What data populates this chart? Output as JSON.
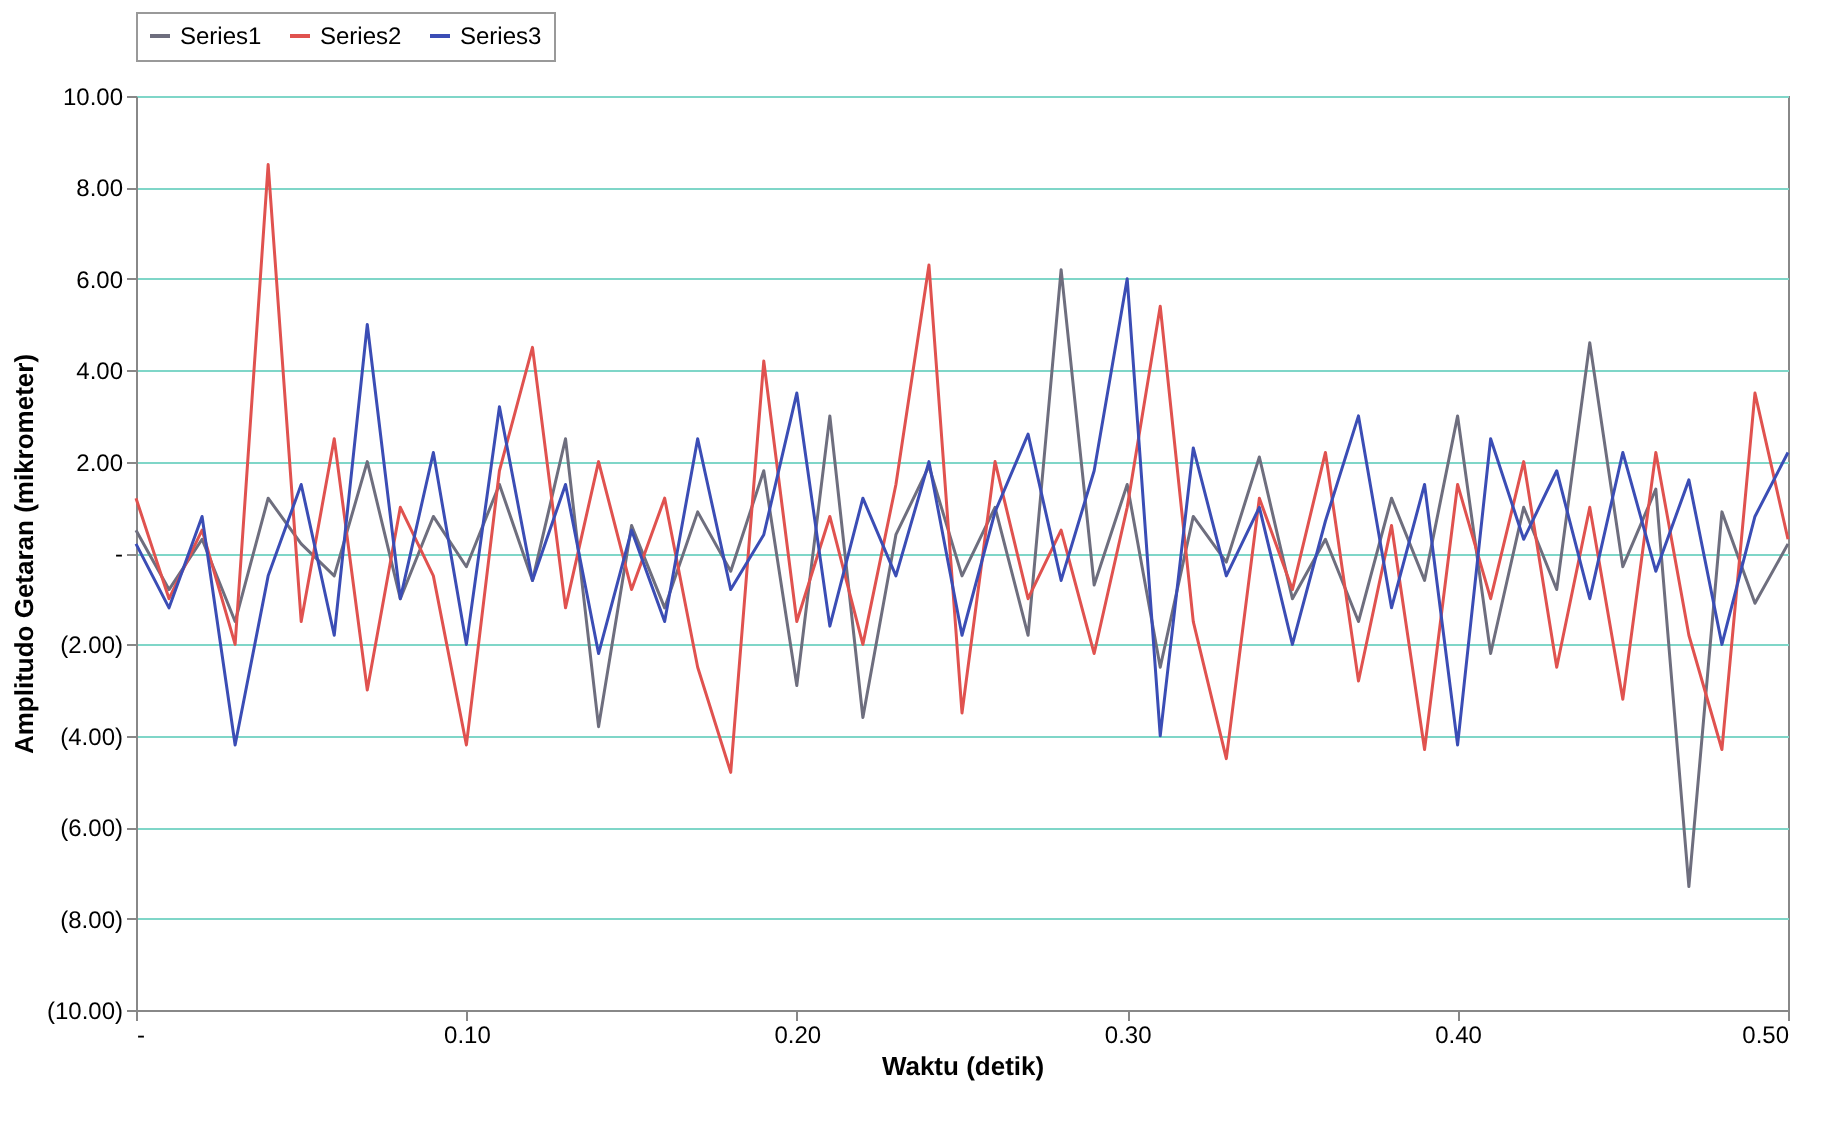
{
  "chart_data": {
    "type": "line",
    "xlabel": "Waktu (detik)",
    "ylabel": "Amplitudo Getaran (mikrometer)",
    "x": [
      0.0,
      0.01,
      0.02,
      0.03,
      0.04,
      0.05,
      0.06,
      0.07,
      0.08,
      0.09,
      0.1,
      0.11,
      0.12,
      0.13,
      0.14,
      0.15,
      0.16,
      0.17,
      0.18,
      0.19,
      0.2,
      0.21,
      0.22,
      0.23,
      0.24,
      0.25,
      0.26,
      0.27,
      0.28,
      0.29,
      0.3,
      0.31,
      0.32,
      0.33,
      0.34,
      0.35,
      0.36,
      0.37,
      0.38,
      0.39,
      0.4,
      0.41,
      0.42,
      0.43,
      0.44,
      0.45,
      0.46,
      0.47,
      0.48,
      0.49,
      0.5
    ],
    "series": [
      {
        "name": "Series1",
        "color": "#6e6e7e",
        "values": [
          0.5,
          -0.8,
          0.3,
          -1.5,
          1.2,
          0.2,
          -0.5,
          2.0,
          -1.0,
          0.8,
          -0.3,
          1.5,
          -0.6,
          2.5,
          -3.8,
          0.6,
          -1.2,
          0.9,
          -0.4,
          1.8,
          -2.9,
          3.0,
          -3.6,
          0.4,
          1.9,
          -0.5,
          1.0,
          -1.8,
          6.2,
          -0.7,
          1.5,
          -2.5,
          0.8,
          -0.2,
          2.1,
          -1.0,
          0.3,
          -1.5,
          1.2,
          -0.6,
          3.0,
          -2.2,
          1.0,
          -0.8,
          4.6,
          -0.3,
          1.4,
          -7.3,
          0.9,
          -1.1,
          0.2
        ]
      },
      {
        "name": "Series2",
        "color": "#e0524f",
        "values": [
          1.2,
          -1.0,
          0.5,
          -2.0,
          8.5,
          -1.5,
          2.5,
          -3.0,
          1.0,
          -0.5,
          -4.2,
          1.8,
          4.5,
          -1.2,
          2.0,
          -0.8,
          1.2,
          -2.5,
          -4.8,
          4.2,
          -1.5,
          0.8,
          -2.0,
          1.5,
          6.3,
          -3.5,
          2.0,
          -1.0,
          0.5,
          -2.2,
          1.0,
          5.4,
          -1.5,
          -4.5,
          1.2,
          -0.8,
          2.2,
          -2.8,
          0.6,
          -4.3,
          1.5,
          -1.0,
          2.0,
          -2.5,
          1.0,
          -3.2,
          2.2,
          -1.8,
          -4.3,
          3.5,
          0.3
        ]
      },
      {
        "name": "Series3",
        "color": "#3b4db5",
        "values": [
          0.2,
          -1.2,
          0.8,
          -4.2,
          -0.5,
          1.5,
          -1.8,
          5.0,
          -1.0,
          2.2,
          -2.0,
          3.2,
          -0.6,
          1.5,
          -2.2,
          0.5,
          -1.5,
          2.5,
          -0.8,
          0.4,
          3.5,
          -1.6,
          1.2,
          -0.5,
          2.0,
          -1.8,
          0.9,
          2.6,
          -0.6,
          1.8,
          6.0,
          -4.0,
          2.3,
          -0.5,
          1.0,
          -2.0,
          0.7,
          3.0,
          -1.2,
          1.5,
          -4.2,
          2.5,
          0.3,
          1.8,
          -1.0,
          2.2,
          -0.4,
          1.6,
          -2.0,
          0.8,
          2.2
        ]
      }
    ],
    "xlim": [
      0,
      0.5
    ],
    "xticks": [
      {
        "value": 0,
        "label": "-"
      },
      {
        "value": 0.1,
        "label": "0.10"
      },
      {
        "value": 0.2,
        "label": "0.20"
      },
      {
        "value": 0.3,
        "label": "0.30"
      },
      {
        "value": 0.4,
        "label": "0.40"
      },
      {
        "value": 0.5,
        "label": "0.50"
      }
    ],
    "ylim": [
      -10,
      10
    ],
    "yticks": [
      {
        "value": -10,
        "label": "(10.00)"
      },
      {
        "value": -8,
        "label": "(8.00)"
      },
      {
        "value": -6,
        "label": "(6.00)"
      },
      {
        "value": -4,
        "label": "(4.00)"
      },
      {
        "value": -2,
        "label": "(2.00)"
      },
      {
        "value": 0,
        "label": "-"
      },
      {
        "value": 2,
        "label": "2.00"
      },
      {
        "value": 4,
        "label": "4.00"
      },
      {
        "value": 6,
        "label": "6.00"
      },
      {
        "value": 8,
        "label": "8.00"
      },
      {
        "value": 10,
        "label": "10.00"
      }
    ],
    "grid": "y",
    "legend": "top"
  }
}
